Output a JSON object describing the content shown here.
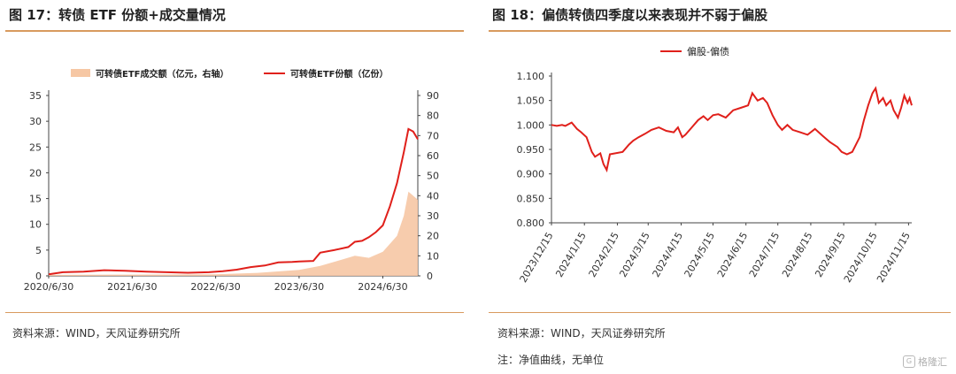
{
  "left": {
    "title": "图 17：转债 ETF 份额+成交量情况",
    "source": "资料来源：WIND，天风证券研究所"
  },
  "right": {
    "title": "图 18：偏债转债四季度以来表现并不弱于偏股",
    "source": "资料来源：WIND，天风证券研究所",
    "note": "注：净值曲线，无单位"
  },
  "watermark": {
    "text": "格隆汇",
    "icon": "gelonghui-logo-icon"
  },
  "colors": {
    "accent_rule": "#d89a5e",
    "line_red": "#e0201b",
    "area_peach": "#f6c7a4"
  },
  "chart_data": [
    {
      "type": "line",
      "legend_position": "top",
      "legend": [
        "可转债ETF成交额（亿元，右轴）",
        "可转债ETF份额（亿份）"
      ],
      "x_ticks": [
        "2020/6/30",
        "2021/6/30",
        "2022/6/30",
        "2023/6/30",
        "2024/6/30"
      ],
      "x_range": [
        "2020-06-30",
        "2024-11-30"
      ],
      "y_left": {
        "ticks": [
          "0",
          "5",
          "10",
          "15",
          "20",
          "25",
          "30",
          "35"
        ],
        "range": [
          0,
          35
        ]
      },
      "y_right": {
        "ticks": [
          "0",
          "10",
          "20",
          "30",
          "40",
          "50",
          "60",
          "70",
          "80",
          "90"
        ],
        "range": [
          0,
          90
        ]
      },
      "series": [
        {
          "name": "可转债ETF份额（亿份）",
          "axis": "left",
          "style": "line",
          "points": [
            [
              "2020-06-30",
              0.3
            ],
            [
              "2020-08-31",
              0.7
            ],
            [
              "2020-11-30",
              0.8
            ],
            [
              "2021-02-28",
              1.1
            ],
            [
              "2021-05-31",
              1.0
            ],
            [
              "2021-08-31",
              0.8
            ],
            [
              "2021-11-30",
              0.7
            ],
            [
              "2022-02-28",
              0.6
            ],
            [
              "2022-05-31",
              0.7
            ],
            [
              "2022-07-31",
              0.9
            ],
            [
              "2022-09-30",
              1.2
            ],
            [
              "2022-11-30",
              1.7
            ],
            [
              "2023-01-31",
              2.0
            ],
            [
              "2023-03-31",
              2.6
            ],
            [
              "2023-05-31",
              2.7
            ],
            [
              "2023-06-30",
              2.8
            ],
            [
              "2023-08-31",
              2.9
            ],
            [
              "2023-09-30",
              4.5
            ],
            [
              "2023-11-30",
              5.0
            ],
            [
              "2024-01-31",
              5.6
            ],
            [
              "2024-02-29",
              6.6
            ],
            [
              "2024-03-31",
              6.8
            ],
            [
              "2024-04-30",
              7.5
            ],
            [
              "2024-05-31",
              8.5
            ],
            [
              "2024-06-30",
              9.8
            ],
            [
              "2024-07-31",
              13.5
            ],
            [
              "2024-08-31",
              18.0
            ],
            [
              "2024-09-30",
              24.0
            ],
            [
              "2024-10-20",
              28.5
            ],
            [
              "2024-11-10",
              28.0
            ],
            [
              "2024-11-30",
              26.5
            ]
          ]
        },
        {
          "name": "可转债ETF成交额（亿元，右轴）",
          "axis": "right",
          "style": "area",
          "points": [
            [
              "2020-06-30",
              0.5
            ],
            [
              "2021-06-30",
              0.6
            ],
            [
              "2022-06-30",
              0.8
            ],
            [
              "2022-12-31",
              1.5
            ],
            [
              "2023-06-30",
              3
            ],
            [
              "2023-09-30",
              5
            ],
            [
              "2023-12-31",
              8
            ],
            [
              "2024-02-29",
              10
            ],
            [
              "2024-04-30",
              9
            ],
            [
              "2024-06-30",
              12
            ],
            [
              "2024-08-31",
              20
            ],
            [
              "2024-09-30",
              30
            ],
            [
              "2024-10-20",
              42
            ],
            [
              "2024-11-30",
              38
            ]
          ]
        }
      ]
    },
    {
      "type": "line",
      "legend_position": "top-left",
      "series_name": "偏股-偏债",
      "y_ticks": [
        "0.800",
        "0.850",
        "0.900",
        "0.950",
        "1.000",
        "1.050",
        "1.100"
      ],
      "y_range": [
        0.8,
        1.1
      ],
      "x_ticks": [
        "2023/12/15",
        "2024/1/15",
        "2024/2/15",
        "2024/3/15",
        "2024/4/15",
        "2024/5/15",
        "2024/6/15",
        "2024/7/15",
        "2024/8/15",
        "2024/9/15",
        "2024/10/15",
        "2024/11/15"
      ],
      "x_range": [
        "2023-12-15",
        "2024-11-18"
      ],
      "points": [
        [
          "2023-12-15",
          1.0
        ],
        [
          "2023-12-20",
          0.998
        ],
        [
          "2023-12-25",
          1.0
        ],
        [
          "2023-12-28",
          0.998
        ],
        [
          "2024-01-03",
          1.005
        ],
        [
          "2024-01-08",
          0.992
        ],
        [
          "2024-01-12",
          0.985
        ],
        [
          "2024-01-17",
          0.975
        ],
        [
          "2024-01-22",
          0.945
        ],
        [
          "2024-01-25",
          0.935
        ],
        [
          "2024-01-30",
          0.942
        ],
        [
          "2024-02-02",
          0.92
        ],
        [
          "2024-02-05",
          0.908
        ],
        [
          "2024-02-08",
          0.94
        ],
        [
          "2024-02-20",
          0.945
        ],
        [
          "2024-02-26",
          0.96
        ],
        [
          "2024-03-01",
          0.968
        ],
        [
          "2024-03-06",
          0.975
        ],
        [
          "2024-03-12",
          0.982
        ],
        [
          "2024-03-18",
          0.99
        ],
        [
          "2024-03-25",
          0.995
        ],
        [
          "2024-04-01",
          0.988
        ],
        [
          "2024-04-08",
          0.985
        ],
        [
          "2024-04-12",
          0.995
        ],
        [
          "2024-04-16",
          0.975
        ],
        [
          "2024-04-19",
          0.98
        ],
        [
          "2024-04-25",
          0.995
        ],
        [
          "2024-05-01",
          1.01
        ],
        [
          "2024-05-06",
          1.018
        ],
        [
          "2024-05-10",
          1.01
        ],
        [
          "2024-05-15",
          1.02
        ],
        [
          "2024-05-20",
          1.022
        ],
        [
          "2024-05-27",
          1.015
        ],
        [
          "2024-06-03",
          1.03
        ],
        [
          "2024-06-10",
          1.035
        ],
        [
          "2024-06-17",
          1.04
        ],
        [
          "2024-06-21",
          1.065
        ],
        [
          "2024-06-26",
          1.05
        ],
        [
          "2024-07-01",
          1.055
        ],
        [
          "2024-07-05",
          1.045
        ],
        [
          "2024-07-10",
          1.02
        ],
        [
          "2024-07-15",
          1.0
        ],
        [
          "2024-07-19",
          0.99
        ],
        [
          "2024-07-24",
          1.0
        ],
        [
          "2024-07-29",
          0.99
        ],
        [
          "2024-08-05",
          0.985
        ],
        [
          "2024-08-12",
          0.98
        ],
        [
          "2024-08-19",
          0.992
        ],
        [
          "2024-08-26",
          0.978
        ],
        [
          "2024-09-02",
          0.965
        ],
        [
          "2024-09-09",
          0.955
        ],
        [
          "2024-09-13",
          0.945
        ],
        [
          "2024-09-18",
          0.94
        ],
        [
          "2024-09-23",
          0.945
        ],
        [
          "2024-09-30",
          0.975
        ],
        [
          "2024-10-04",
          1.01
        ],
        [
          "2024-10-08",
          1.04
        ],
        [
          "2024-10-12",
          1.065
        ],
        [
          "2024-10-15",
          1.075
        ],
        [
          "2024-10-18",
          1.045
        ],
        [
          "2024-10-22",
          1.055
        ],
        [
          "2024-10-25",
          1.04
        ],
        [
          "2024-10-29",
          1.05
        ],
        [
          "2024-11-01",
          1.03
        ],
        [
          "2024-11-05",
          1.015
        ],
        [
          "2024-11-08",
          1.035
        ],
        [
          "2024-11-11",
          1.06
        ],
        [
          "2024-11-14",
          1.045
        ],
        [
          "2024-11-16",
          1.055
        ],
        [
          "2024-11-18",
          1.04
        ]
      ]
    }
  ]
}
